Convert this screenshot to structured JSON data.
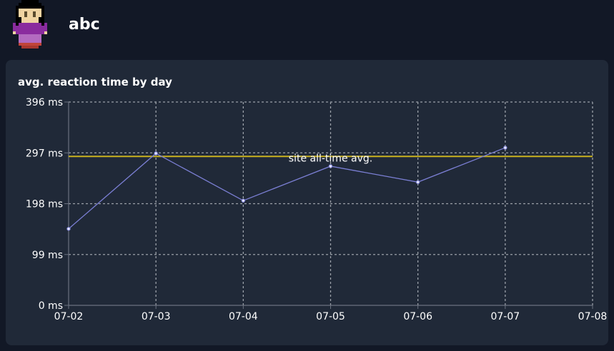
{
  "header": {
    "username": "abc",
    "avatar": "pixel-character-avatar"
  },
  "card": {
    "title": "avg. reaction time by day"
  },
  "colors": {
    "series": "#7b7fd4",
    "average": "#c9b21f",
    "grid": "#9aa0a8",
    "axis": "#6b7280"
  },
  "chart_data": {
    "type": "line",
    "title": "avg. reaction time by day",
    "xlabel": "",
    "ylabel": "",
    "categories": [
      "07-02",
      "07-03",
      "07-04",
      "07-05",
      "07-06",
      "07-07",
      "07-08"
    ],
    "y_ticks": [
      "0 ms",
      "99 ms",
      "198 ms",
      "297 ms",
      "396 ms"
    ],
    "ylim": [
      0,
      396
    ],
    "grid": true,
    "series": [
      {
        "name": "avg. reaction time",
        "x": [
          "07-02",
          "07-03",
          "07-04",
          "07-05",
          "07-06",
          "07-07"
        ],
        "values": [
          149,
          296,
          204,
          271,
          240,
          307
        ]
      }
    ],
    "reference_lines": [
      {
        "label": "site all-time avg.",
        "value": 290
      }
    ]
  }
}
